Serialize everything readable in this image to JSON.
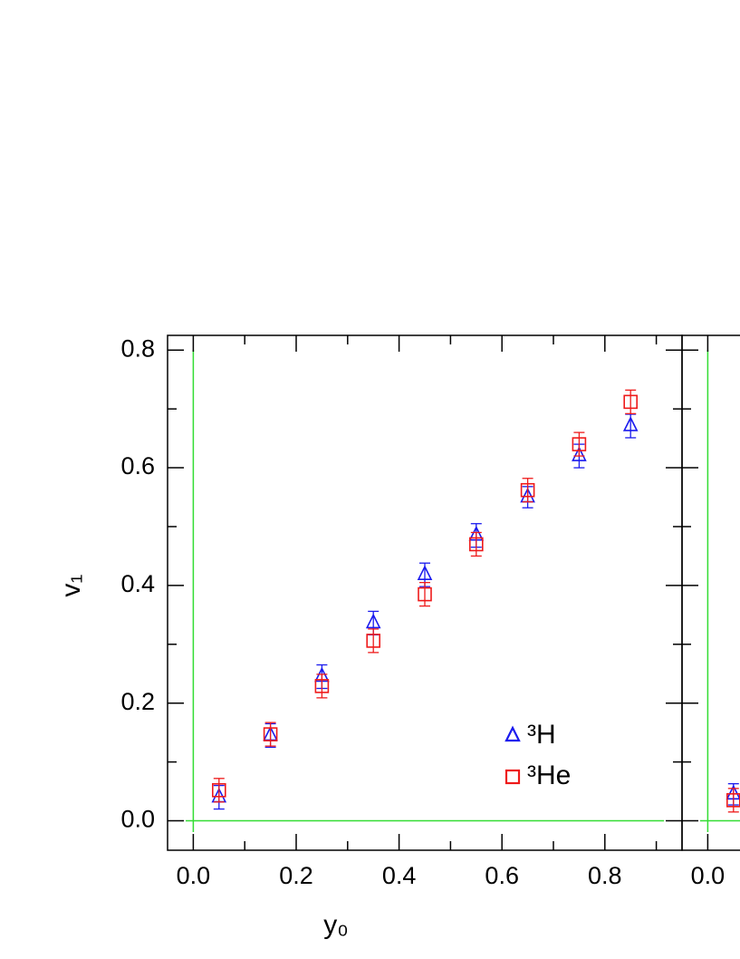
{
  "chart_data": [
    {
      "type": "scatter",
      "x_label": "y₀",
      "y_label": "v₁",
      "xlim": [
        -0.05,
        0.95
      ],
      "ylim": [
        -0.05,
        0.825
      ],
      "xticks": [
        {
          "value": 0,
          "label": "0.0"
        },
        {
          "value": 0.2,
          "label": "0.2"
        },
        {
          "value": 0.4,
          "label": "0.4"
        },
        {
          "value": 0.6,
          "label": "0.6"
        },
        {
          "value": 0.8,
          "label": "0.8"
        }
      ],
      "xminorticks": [
        0.1,
        0.3,
        0.5,
        0.7,
        0.9
      ],
      "yticks": [
        {
          "value": 0,
          "label": "0.0"
        },
        {
          "value": 0.2,
          "label": "0.2"
        },
        {
          "value": 0.4,
          "label": "0.4"
        },
        {
          "value": 0.6,
          "label": "0.6"
        },
        {
          "value": 0.8,
          "label": "0.8"
        }
      ],
      "yminorticks": [
        0.1,
        0.3,
        0.5,
        0.7
      ],
      "zero_line_color": "#33dd33",
      "x": [
        0.05,
        0.15,
        0.25,
        0.35,
        0.45,
        0.55,
        0.65,
        0.75,
        0.85
      ],
      "series": [
        {
          "name": "³H",
          "color": "#1a1aee",
          "marker": "triangle",
          "values": [
            0.04,
            0.145,
            0.245,
            0.336,
            0.418,
            0.485,
            0.55,
            0.62,
            0.671
          ],
          "errors": [
            0.02,
            0.02,
            0.02,
            0.02,
            0.02,
            0.02,
            0.018,
            0.02,
            0.02
          ]
        },
        {
          "name": "³He",
          "color": "#ee1a1a",
          "marker": "square",
          "values": [
            0.052,
            0.147,
            0.229,
            0.306,
            0.385,
            0.47,
            0.562,
            0.64,
            0.712
          ],
          "errors": [
            0.02,
            0.02,
            0.02,
            0.02,
            0.02,
            0.02,
            0.02,
            0.02,
            0.02
          ]
        }
      ]
    },
    {
      "type": "scatter",
      "xlim": [
        -0.05,
        0.95
      ],
      "ylim": [
        -0.05,
        0.825
      ],
      "xticks": [
        {
          "value": 0,
          "label": "0.0"
        }
      ],
      "yticks": [
        0,
        0.2,
        0.4,
        0.6,
        0.8
      ],
      "yminorticks": [
        0.1,
        0.3,
        0.5,
        0.7
      ],
      "zero_line_color": "#33dd33",
      "x": [
        0.05
      ],
      "series": [
        {
          "color": "#1a1aee",
          "marker": "triangle",
          "values": [
            0.045
          ],
          "errors": [
            0.018
          ]
        },
        {
          "color": "#ee1a1a",
          "marker": "square",
          "values": [
            0.035
          ],
          "errors": [
            0.02
          ]
        }
      ]
    }
  ]
}
